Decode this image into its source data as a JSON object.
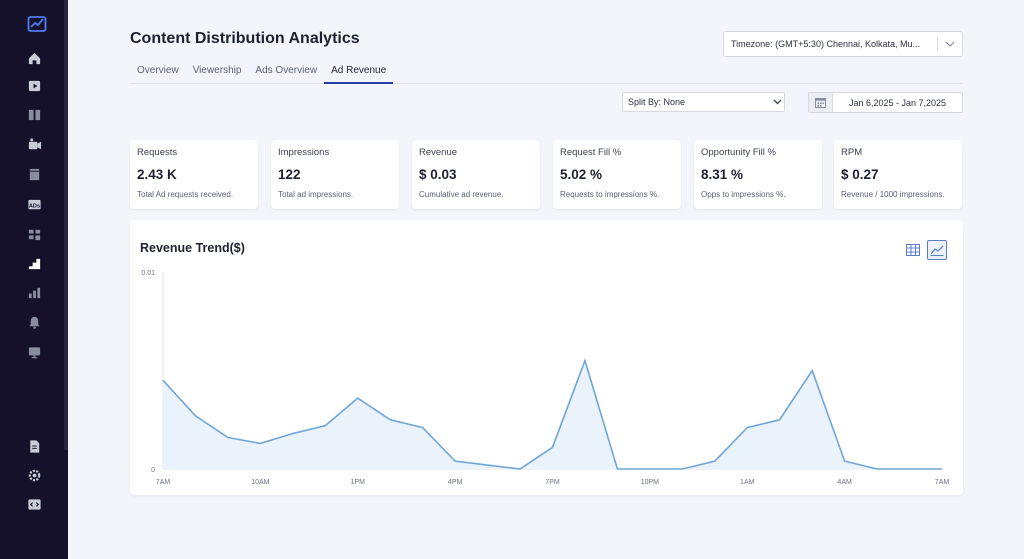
{
  "app": {
    "title": "Content Distribution Analytics"
  },
  "sidebar": {
    "items": [
      {
        "icon": "home-icon"
      },
      {
        "icon": "video-library-icon"
      },
      {
        "icon": "books-icon"
      },
      {
        "icon": "camera-icon"
      },
      {
        "icon": "clapper-icon"
      },
      {
        "icon": "ads-icon"
      },
      {
        "icon": "grid-icon"
      },
      {
        "icon": "analytics-icon",
        "active": true
      },
      {
        "icon": "bar-chart-icon"
      },
      {
        "icon": "bell-icon"
      },
      {
        "icon": "monitor-icon"
      },
      {
        "icon": "document-icon"
      },
      {
        "icon": "settings-icon"
      },
      {
        "icon": "code-icon"
      }
    ]
  },
  "tabs": [
    {
      "label": "Overview"
    },
    {
      "label": "Viewership"
    },
    {
      "label": "Ads Overview"
    },
    {
      "label": "Ad Revenue",
      "active": true
    }
  ],
  "timezone": {
    "value": "Timezone: (GMT+5:30) Chennai, Kolkata, Mu..."
  },
  "filters": {
    "split_by": "Split By: None",
    "date_range": "Jan 6,2025  -  Jan 7,2025"
  },
  "kpis": [
    {
      "label": "Requests",
      "value": "2.43 K",
      "desc": "Total Ad requests received."
    },
    {
      "label": "Impressions",
      "value": "122",
      "desc": "Total ad impressions."
    },
    {
      "label": "Revenue",
      "value": "$ 0.03",
      "desc": "Cumulative ad revenue."
    },
    {
      "label": "Request Fill %",
      "value": "5.02 %",
      "desc": "Requests to impressions %."
    },
    {
      "label": "Opportunity Fill %",
      "value": "8.31 %",
      "desc": "Opps to impressions %."
    },
    {
      "label": "RPM",
      "value": "$ 0.27",
      "desc": "Revenue / 1000 impressions."
    }
  ],
  "chart": {
    "title": "Revenue Trend($)"
  },
  "chart_data": {
    "type": "area",
    "title": "Revenue Trend($)",
    "xlabel": "",
    "ylabel": "",
    "ylim": [
      0,
      0.01
    ],
    "y_ticks": [
      "0.01",
      "0"
    ],
    "x_ticks": [
      {
        "label": "7AM",
        "index": 0
      },
      {
        "label": "10AM",
        "index": 3
      },
      {
        "label": "1PM",
        "index": 6
      },
      {
        "label": "4PM",
        "index": 9
      },
      {
        "label": "7PM",
        "index": 12
      },
      {
        "label": "10PM",
        "index": 15
      },
      {
        "label": "1AM",
        "index": 18
      },
      {
        "label": "4AM",
        "index": 21
      },
      {
        "label": "7AM",
        "index": 24
      }
    ],
    "x": [
      "7AM",
      "8AM",
      "9AM",
      "10AM",
      "11AM",
      "12PM",
      "1PM",
      "2PM",
      "3PM",
      "4PM",
      "5PM",
      "6PM",
      "7PM",
      "8PM",
      "9PM",
      "10PM",
      "11PM",
      "12AM",
      "1AM",
      "2AM",
      "3AM",
      "4AM",
      "5AM",
      "6AM",
      "7AM"
    ],
    "series": [
      {
        "values": [
          0.0045,
          0.0027,
          0.0016,
          0.0013,
          0.0018,
          0.0022,
          0.0036,
          0.0025,
          0.0021,
          0.0004,
          0.0002,
          0.0,
          0.0011,
          0.0055,
          0.0,
          0.0,
          0.0,
          0.0004,
          0.0021,
          0.0025,
          0.005,
          0.0004,
          0.0,
          0.0,
          0.0
        ]
      }
    ],
    "grid": false,
    "colors": {
      "line": "#6fa5d8",
      "fill": "#eaf2fb"
    }
  }
}
